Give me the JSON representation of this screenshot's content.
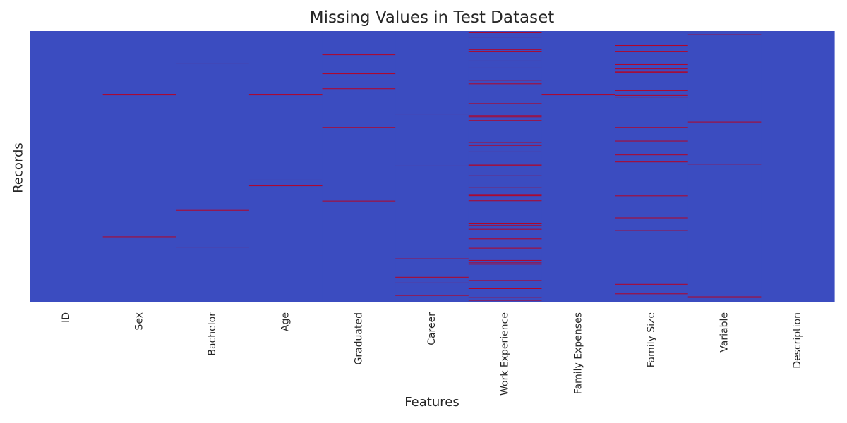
{
  "chart_data": {
    "type": "heatmap",
    "title": "Missing Values in Test Dataset",
    "xlabel": "Features",
    "ylabel": "Records",
    "categories": [
      "ID",
      "Sex",
      "Bachelor",
      "Age",
      "Graduated",
      "Career",
      "Work Experience",
      "Family Expenses",
      "Family  Size",
      "Variable",
      "Description"
    ],
    "value_scale": [
      "present",
      "missing"
    ],
    "colors": {
      "present": "#3b4cc0",
      "missing": "#b40426"
    },
    "n_records": 1000,
    "missing_rows": [
      [],
      [
        234,
        757
      ],
      [
        117,
        659,
        795
      ],
      [
        234,
        548,
        569
      ],
      [
        86,
        156,
        211,
        354,
        625
      ],
      [
        304,
        496,
        838,
        906,
        927,
        973
      ],
      [
        5,
        21,
        67,
        73,
        75,
        109,
        135,
        180,
        193,
        266,
        310,
        315,
        328,
        409,
        420,
        444,
        489,
        493,
        532,
        576,
        601,
        605,
        610,
        624,
        709,
        715,
        729,
        763,
        768,
        799,
        844,
        853,
        858,
        918,
        948,
        981,
        991
      ],
      [
        234
      ],
      [
        52,
        75,
        122,
        138,
        149,
        152,
        218,
        236,
        242,
        354,
        404,
        455,
        481,
        606,
        687,
        734,
        932,
        967
      ],
      [
        12,
        334,
        489,
        978
      ],
      []
    ]
  }
}
